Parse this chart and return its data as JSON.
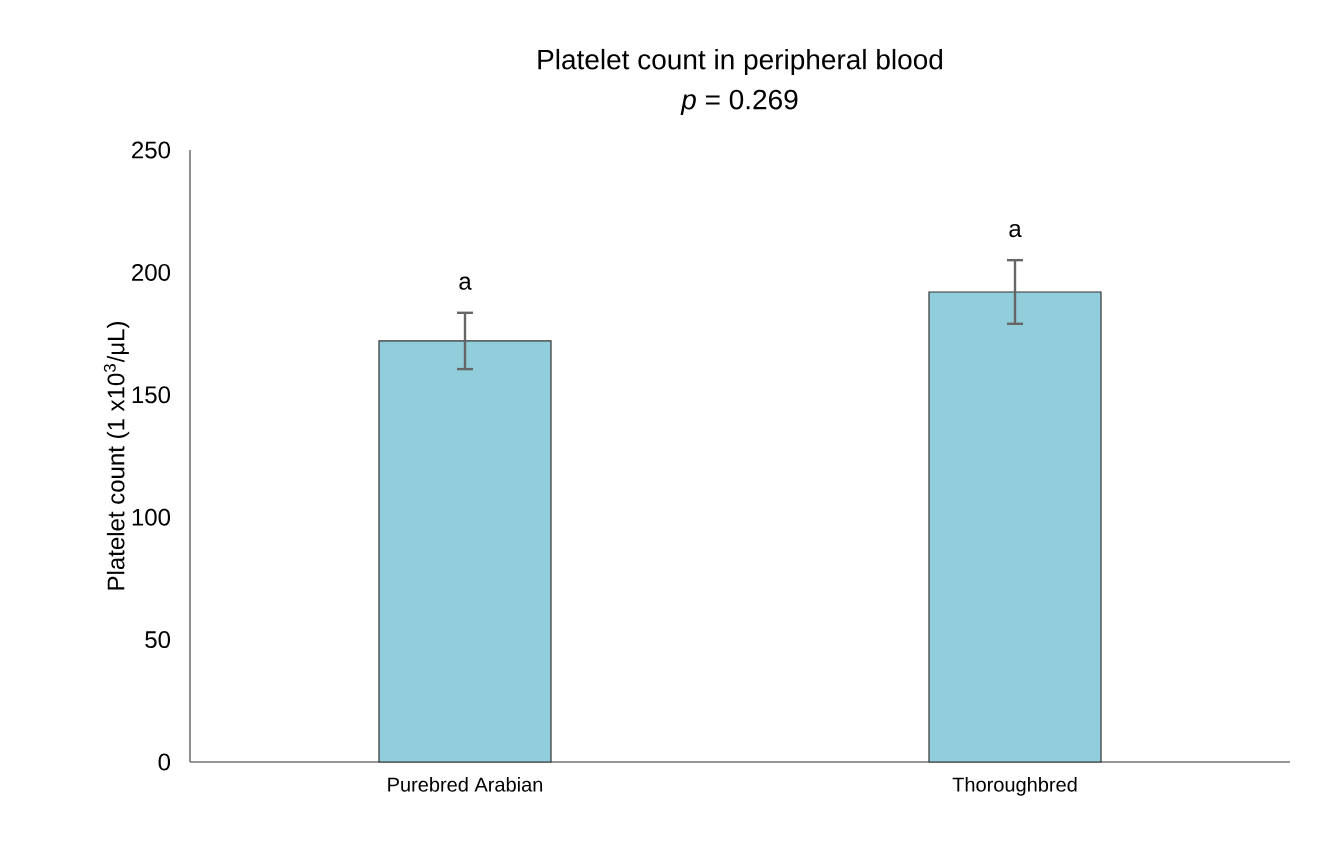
{
  "chart_data": {
    "type": "bar",
    "title": "Platelet count in peripheral blood",
    "subtitle": "*p* = 0.269",
    "ylabel": "Platelet count (1 x10$^{3}$/μL)",
    "categories": [
      "Purebred Arabian",
      "Thoroughbred"
    ],
    "values": [
      172,
      192
    ],
    "errors": [
      11.5,
      13
    ],
    "color": "#92cddc",
    "ylim": [
      0,
      250
    ],
    "yticks": [
      0,
      50,
      100,
      150,
      200,
      250
    ],
    "annotations": [
      "a",
      "a"
    ]
  }
}
